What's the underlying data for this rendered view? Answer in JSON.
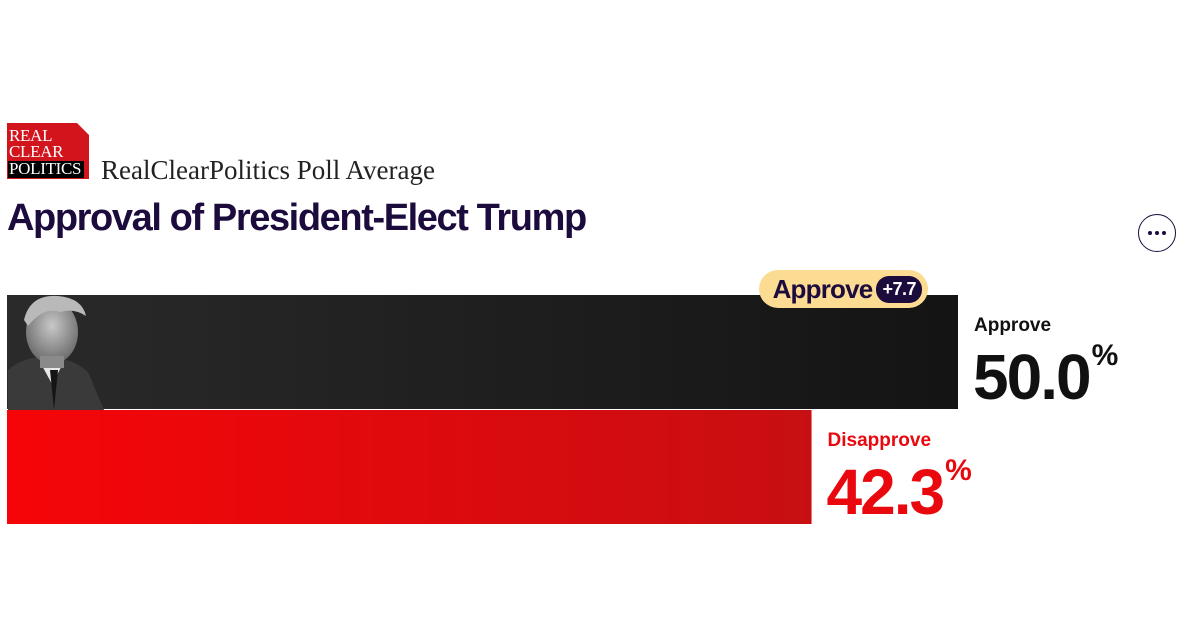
{
  "logo": {
    "line1": "REAL",
    "line2": "CLEAR",
    "line3": "POLITICS"
  },
  "header": {
    "subtitle": "RealClearPolitics Poll Average",
    "title": "Approval of President-Elect Trump"
  },
  "colors": {
    "approve": "#151515",
    "disapprove": "#e8080e",
    "badge": "#fbdc92",
    "accent": "#1c0b3d"
  },
  "icons": {
    "more": "more-horizontal-icon",
    "portrait": "candidate-portrait"
  },
  "chart_data": {
    "type": "bar",
    "orientation": "horizontal",
    "categories": [
      "Approve",
      "Disapprove"
    ],
    "values": [
      50.0,
      42.3
    ],
    "value_labels": [
      "50.0",
      "42.3"
    ],
    "unit": "%",
    "leader": {
      "label": "Approve",
      "spread": "+7.7"
    }
  }
}
